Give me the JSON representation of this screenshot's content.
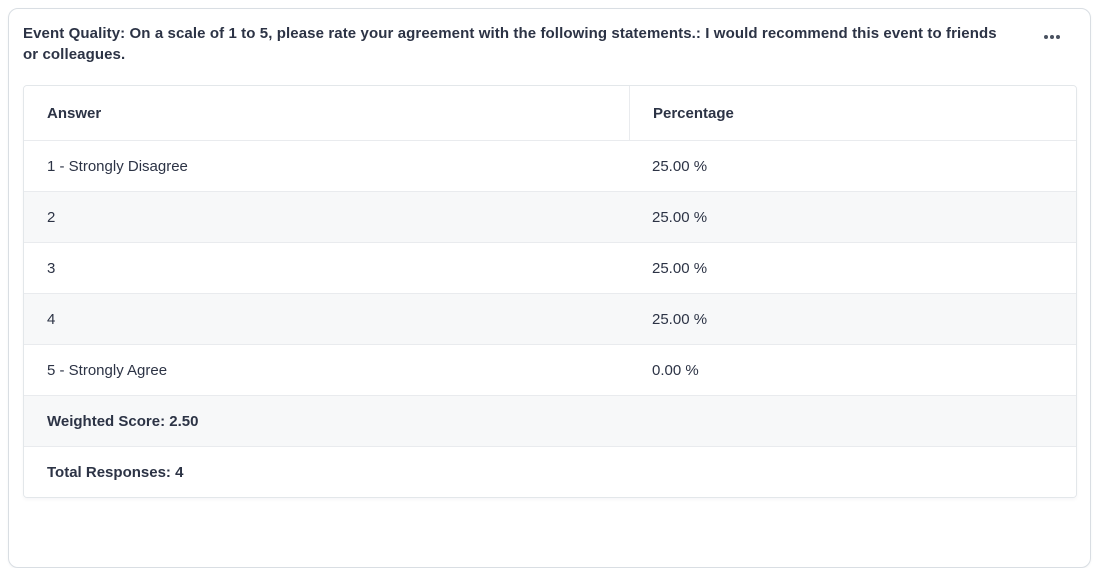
{
  "card": {
    "title": "Event Quality: On a scale of 1 to 5, please rate your agreement with the following statements.: I would recommend this event to friends or colleagues.",
    "menu_icon": "ellipsis-menu"
  },
  "table": {
    "columns": [
      "Answer",
      "Percentage"
    ],
    "rows": [
      {
        "answer": "1 - Strongly Disagree",
        "percentage": "25.00 %"
      },
      {
        "answer": "2",
        "percentage": "25.00 %"
      },
      {
        "answer": "3",
        "percentage": "25.00 %"
      },
      {
        "answer": "4",
        "percentage": "25.00 %"
      },
      {
        "answer": "5 - Strongly Agree",
        "percentage": "0.00 %"
      }
    ],
    "weighted_score": "Weighted Score: 2.50",
    "total_responses": "Total Responses: 4"
  },
  "colors": {
    "text": "#2c3345",
    "alt_row_bg": "#f7f8f9",
    "row_border": "#e9ebee",
    "table_border": "#e3e7ea",
    "card_border": "#d9dee3",
    "icon": "#4a5260"
  }
}
